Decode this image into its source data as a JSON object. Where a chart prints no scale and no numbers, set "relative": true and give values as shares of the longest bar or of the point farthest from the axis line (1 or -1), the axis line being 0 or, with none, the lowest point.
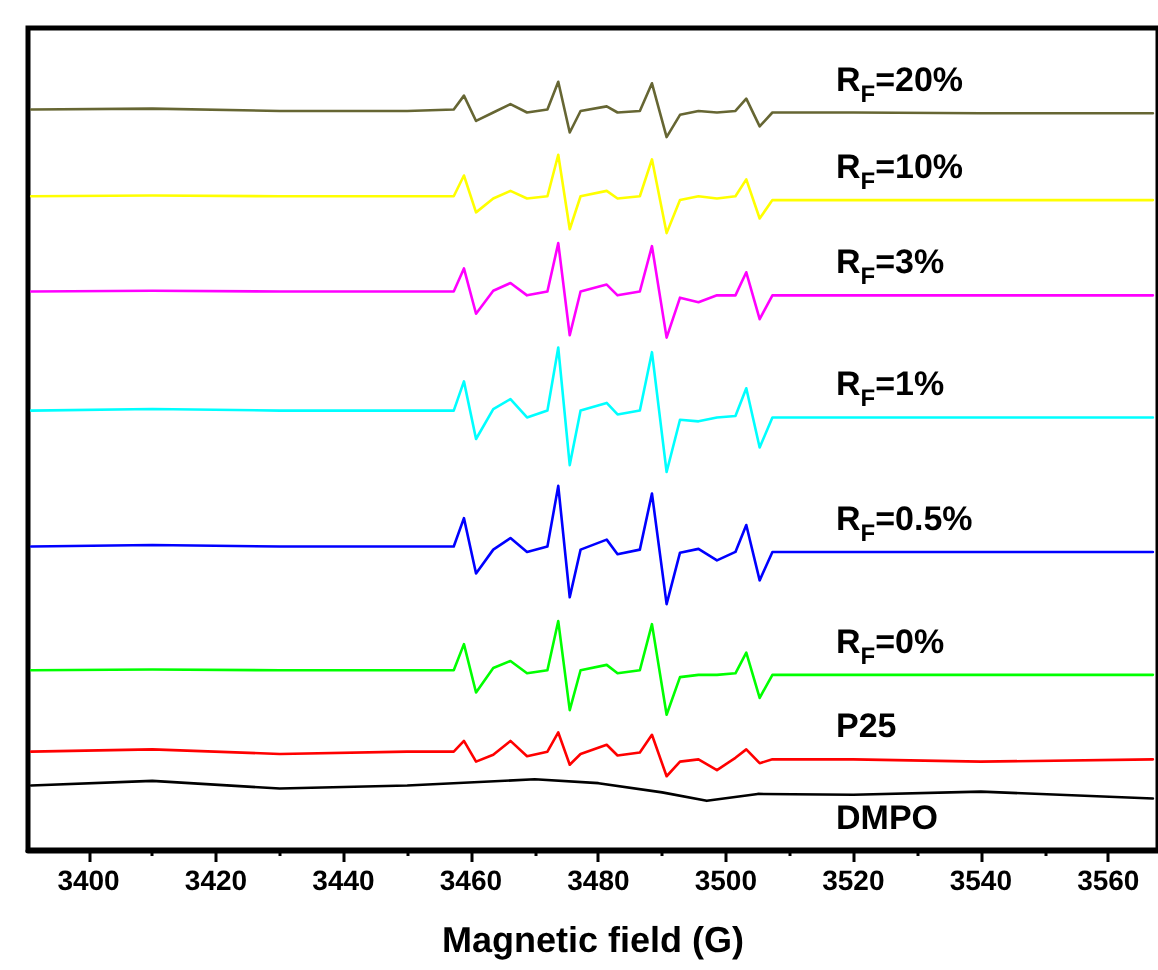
{
  "chart_data": {
    "type": "line",
    "relative": true,
    "xlabel": "Magnetic field (G)",
    "xlim": [
      3390.5,
      3567.8
    ],
    "xticks": [
      3400,
      {
        "value": 3410,
        "label": null
      },
      3420,
      {
        "value": 3430,
        "label": null
      },
      3440,
      {
        "value": 3450,
        "label": null
      },
      3460,
      {
        "value": 3470,
        "label": null
      },
      3480,
      {
        "value": 3490,
        "label": null
      },
      3500,
      {
        "value": 3510,
        "label": null
      },
      3520,
      {
        "value": 3530,
        "label": null
      },
      3540,
      {
        "value": 3550,
        "label": null
      },
      3560
    ],
    "grid": false,
    "legend": false,
    "marker": "none",
    "line_style": "solid",
    "x": [
      3391,
      3410,
      3430,
      3450,
      3457.3,
      3458.9,
      3460.8,
      3463.5,
      3466.2,
      3468.8,
      3472.0,
      3473.7,
      3475.5,
      3477.2,
      3481.3,
      3483.0,
      3486.5,
      3488.4,
      3490.7,
      3492.8,
      3495.7,
      3498.6,
      3501.5,
      3503.2,
      3505.3,
      3507.3,
      3520,
      3540,
      3567
    ],
    "series": [
      {
        "name": "R$_{F}$=20%",
        "color": "#666633",
        "values": [
          0.964,
          0.965,
          0.962,
          0.962,
          0.964,
          0.982,
          0.949,
          0.96,
          0.971,
          0.96,
          0.964,
          1.0,
          0.934,
          0.962,
          0.968,
          0.96,
          0.962,
          0.998,
          0.928,
          0.957,
          0.962,
          0.96,
          0.962,
          0.978,
          0.942,
          0.96,
          0.96,
          0.959,
          0.959
        ]
      },
      {
        "name": "R$_{F}$=10%",
        "color": "#ffff00",
        "values": [
          0.851,
          0.852,
          0.851,
          0.851,
          0.851,
          0.878,
          0.83,
          0.848,
          0.858,
          0.848,
          0.851,
          0.905,
          0.808,
          0.851,
          0.858,
          0.848,
          0.851,
          0.899,
          0.803,
          0.846,
          0.851,
          0.848,
          0.851,
          0.873,
          0.822,
          0.846,
          0.846,
          0.846,
          0.846
        ]
      },
      {
        "name": "R$_{F}$=3%",
        "color": "#ff00ff",
        "values": [
          0.727,
          0.728,
          0.727,
          0.727,
          0.727,
          0.757,
          0.698,
          0.728,
          0.738,
          0.722,
          0.727,
          0.79,
          0.67,
          0.727,
          0.736,
          0.722,
          0.727,
          0.786,
          0.667,
          0.719,
          0.713,
          0.722,
          0.722,
          0.752,
          0.691,
          0.722,
          0.722,
          0.722,
          0.722
        ]
      },
      {
        "name": "R$_{F}$=1%",
        "color": "#00ffff",
        "values": [
          0.572,
          0.574,
          0.572,
          0.572,
          0.572,
          0.61,
          0.535,
          0.574,
          0.587,
          0.563,
          0.572,
          0.654,
          0.501,
          0.572,
          0.582,
          0.567,
          0.572,
          0.648,
          0.492,
          0.56,
          0.558,
          0.563,
          0.565,
          0.601,
          0.524,
          0.563,
          0.563,
          0.563,
          0.563
        ]
      },
      {
        "name": "R$_{F}$=0.5%",
        "color": "#0000ff",
        "values": [
          0.395,
          0.397,
          0.395,
          0.395,
          0.395,
          0.432,
          0.36,
          0.391,
          0.406,
          0.388,
          0.395,
          0.474,
          0.329,
          0.391,
          0.404,
          0.385,
          0.391,
          0.464,
          0.32,
          0.387,
          0.392,
          0.377,
          0.388,
          0.423,
          0.351,
          0.388,
          0.388,
          0.388,
          0.388
        ]
      },
      {
        "name": "R$_{F}$=0%",
        "color": "#00ff00",
        "values": [
          0.234,
          0.235,
          0.234,
          0.234,
          0.234,
          0.268,
          0.205,
          0.237,
          0.246,
          0.23,
          0.234,
          0.298,
          0.182,
          0.234,
          0.241,
          0.23,
          0.234,
          0.294,
          0.176,
          0.225,
          0.228,
          0.228,
          0.23,
          0.257,
          0.198,
          0.228,
          0.228,
          0.228,
          0.228
        ]
      },
      {
        "name": "P25",
        "color": "#ff0000",
        "values": [
          0.128,
          0.131,
          0.125,
          0.128,
          0.128,
          0.142,
          0.115,
          0.124,
          0.142,
          0.122,
          0.128,
          0.153,
          0.111,
          0.125,
          0.137,
          0.123,
          0.127,
          0.15,
          0.096,
          0.115,
          0.118,
          0.104,
          0.12,
          0.131,
          0.113,
          0.118,
          0.118,
          0.115,
          0.118
        ]
      },
      {
        "name": "DMPO",
        "color": "#000000",
        "x": [
          3391,
          3410,
          3430,
          3450,
          3470,
          3480,
          3490,
          3497,
          3505,
          3520,
          3540,
          3567
        ],
        "values": [
          0.084,
          0.09,
          0.08,
          0.084,
          0.092,
          0.087,
          0.075,
          0.064,
          0.073,
          0.072,
          0.076,
          0.067
        ]
      }
    ]
  }
}
